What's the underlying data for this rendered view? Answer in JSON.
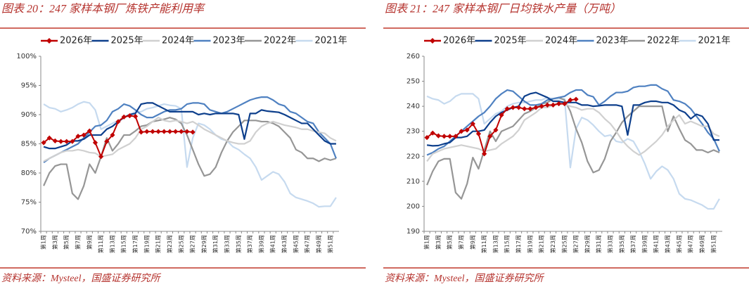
{
  "chart_data": [
    {
      "type": "line",
      "title": "图表 20：247 家样本钢厂炼铁产能利用率",
      "source": "资料来源：Mysteel，国盛证券研究所",
      "categories": [
        "第1周",
        null,
        "第3周",
        null,
        "第5周",
        null,
        "第7周",
        null,
        "第9周",
        null,
        "第11周",
        null,
        "第13周",
        null,
        "第15周",
        null,
        "第17周",
        null,
        "第19周",
        null,
        "第21周",
        null,
        "第23周",
        null,
        "第25周",
        null,
        "第27周",
        null,
        "第29周",
        null,
        "第31周",
        null,
        "第33周",
        null,
        "第35周",
        null,
        "第37周",
        null,
        "第39周",
        null,
        "第41周",
        null,
        "第43周",
        null,
        "第45周",
        null,
        "第47周",
        null,
        "第49周",
        null,
        "第51周",
        null
      ],
      "ylim": [
        70,
        100
      ],
      "yticks": [
        {
          "value": 70,
          "label": "70%"
        },
        {
          "value": 75,
          "label": "75%"
        },
        {
          "value": 80,
          "label": "80%"
        },
        {
          "value": 85,
          "label": "85%"
        },
        {
          "value": 90,
          "label": "90%"
        },
        {
          "value": 95,
          "label": "95%"
        },
        {
          "value": 100,
          "label": "100%"
        }
      ],
      "series": [
        {
          "name": "2026年",
          "color": "#c00000",
          "marker": "diamond",
          "values": [
            85.2,
            86,
            85.5,
            85.4,
            85.4,
            85.4,
            86.3,
            86.5,
            87.2,
            85.2,
            82.8,
            85.4,
            86.5,
            88.8,
            89.6,
            89.8,
            89.7,
            87,
            87.1,
            87.1,
            87.1,
            87.1,
            87.1,
            87.1,
            87.1,
            87.1,
            87,
            null,
            null,
            null,
            null,
            null,
            null,
            null,
            null,
            null,
            null,
            null,
            null,
            null,
            null,
            null,
            null,
            null,
            null,
            null,
            null,
            null,
            null,
            null,
            null,
            null
          ]
        },
        {
          "name": "2025年",
          "color": "#0d3f8c",
          "values": [
            84.5,
            84.2,
            84.2,
            84.5,
            84.8,
            85.5,
            85.5,
            85.8,
            86.5,
            86.5,
            86.5,
            87.5,
            88,
            88.8,
            89.5,
            90,
            90.2,
            91.8,
            92,
            92,
            91.5,
            91,
            90.5,
            90.5,
            90.5,
            90.5,
            90.5,
            90,
            90.2,
            90,
            90.2,
            90.2,
            90.2,
            90.2,
            90,
            85.8,
            90.2,
            90.2,
            90.8,
            90.6,
            90.5,
            90.4,
            90,
            89.5,
            89,
            88.5,
            88.5,
            87.5,
            86.5,
            85.5,
            85,
            85
          ]
        },
        {
          "name": "2024年",
          "color": "#d0d0d0",
          "values": [
            82,
            82.5,
            83,
            83.5,
            83.8,
            83.8,
            84,
            83.8,
            83.5,
            83.4,
            82.8,
            83,
            83.2,
            84,
            84.5,
            85,
            86,
            87.5,
            88,
            88.8,
            89.5,
            89,
            88.8,
            89,
            88.8,
            88.5,
            88.8,
            88.2,
            87.5,
            87,
            86.5,
            86,
            85.5,
            85.2,
            85,
            85,
            85.5,
            87,
            88,
            88.5,
            88.8,
            88.5,
            88.2,
            88,
            87.8,
            87.5,
            87.5,
            87.2,
            87,
            86.8,
            86,
            85.5
          ]
        },
        {
          "name": "2023年",
          "color": "#4f81c1",
          "values": [
            81.8,
            82.5,
            83,
            83.5,
            84,
            84.5,
            85,
            86,
            87,
            88,
            88.2,
            89,
            90.5,
            91,
            91.8,
            91.5,
            90.8,
            90,
            89.5,
            89.5,
            90,
            90.5,
            90.8,
            90.8,
            91,
            91.8,
            92,
            92,
            91.8,
            90.8,
            90.5,
            90.2,
            90.5,
            91,
            91.5,
            92,
            92.5,
            92.8,
            93,
            93,
            92.5,
            91.8,
            91.5,
            90.5,
            90.2,
            89.5,
            88.8,
            88.5,
            87,
            86,
            85,
            82.5
          ]
        },
        {
          "name": "2022年",
          "color": "#969696",
          "values": [
            77.8,
            80,
            81.2,
            81.5,
            81.5,
            76.5,
            75.5,
            77.8,
            81.5,
            80,
            82.8,
            86,
            83.8,
            85,
            86.5,
            86.5,
            87.2,
            88,
            88.2,
            88.8,
            89,
            89.2,
            89.5,
            89.2,
            88.5,
            86.5,
            84,
            81.5,
            79.5,
            79.8,
            81,
            83.5,
            85.5,
            87,
            88,
            89,
            89,
            89,
            88.8,
            88.8,
            88.5,
            88,
            87,
            86,
            84,
            83.5,
            82.5,
            82.5,
            82,
            82.5,
            82.2,
            82.5
          ]
        },
        {
          "name": "2021年",
          "color": "#c6daef",
          "values": [
            91.8,
            91.2,
            91,
            90.5,
            90.8,
            91.2,
            91.8,
            92.2,
            92,
            90.8,
            87.5,
            88,
            88.5,
            89,
            89.5,
            90,
            90.5,
            90.5,
            91,
            91.2,
            91.5,
            91.8,
            91.6,
            91.5,
            91,
            81,
            86,
            88.5,
            88.2,
            87.5,
            86.5,
            85.8,
            85.5,
            84.5,
            84,
            83.2,
            82.5,
            81,
            78.8,
            79.5,
            80.2,
            79.8,
            78.5,
            76.5,
            75.8,
            75.5,
            75.2,
            74.8,
            74.2,
            74.3,
            74.3,
            75.8
          ]
        }
      ]
    },
    {
      "type": "line",
      "title": "图表 21：247 家样本钢厂日均铁水产量（万吨）",
      "source": "资料来源：Mysteel，国盛证券研究所",
      "categories": [
        "第1周",
        null,
        "第3周",
        null,
        "第5周",
        null,
        "第7周",
        null,
        "第9周",
        null,
        "第11周",
        null,
        "第13周",
        null,
        "第15周",
        null,
        "第17周",
        null,
        "第19周",
        null,
        "第21周",
        null,
        "第23周",
        null,
        "第25周",
        null,
        "第27周",
        null,
        "第29周",
        null,
        "第31周",
        null,
        "第33周",
        null,
        "第35周",
        null,
        "第37周",
        null,
        "第39周",
        null,
        "第41周",
        null,
        "第43周",
        null,
        "第45周",
        null,
        "第47周",
        null,
        "第49周",
        null,
        "第51周",
        null
      ],
      "ylim": [
        190,
        260
      ],
      "yticks": [
        190,
        200,
        210,
        220,
        230,
        240,
        250,
        260
      ],
      "series": [
        {
          "name": "2026年",
          "color": "#c00000",
          "marker": "diamond",
          "values": [
            227.5,
            229.3,
            228.2,
            228,
            228,
            228,
            230,
            230.5,
            233,
            229,
            221,
            228,
            230.5,
            236.5,
            239,
            239.5,
            239.5,
            239,
            239,
            239.5,
            240,
            240.5,
            240.5,
            241,
            241,
            242.5,
            242.8,
            null,
            null,
            null,
            null,
            null,
            null,
            null,
            null,
            null,
            null,
            null,
            null,
            null,
            null,
            null,
            null,
            null,
            null,
            null,
            null,
            null,
            null,
            null,
            null,
            null
          ]
        },
        {
          "name": "2025年",
          "color": "#0d3f8c",
          "values": [
            224.5,
            224.2,
            224.3,
            225,
            225.5,
            227.5,
            227.5,
            228,
            230,
            230,
            230.5,
            233.5,
            236,
            237.5,
            238.5,
            239.5,
            240,
            244,
            245,
            245.5,
            244.5,
            243.5,
            242,
            242,
            241.5,
            241.5,
            241.5,
            240.5,
            240.5,
            240,
            240.2,
            240.5,
            240.5,
            240.5,
            240,
            228.5,
            240.5,
            240.5,
            241.5,
            242,
            242,
            241.5,
            241.5,
            240.5,
            238.5,
            237.5,
            235,
            236.8,
            236,
            233,
            226.5,
            226.5
          ]
        },
        {
          "name": "2024年",
          "color": "#d0d0d0",
          "values": [
            218,
            221,
            222,
            223,
            223.5,
            224,
            224.5,
            224,
            223.5,
            223,
            222,
            222.5,
            223,
            225,
            226.5,
            228,
            230.5,
            234.5,
            236,
            237.5,
            239.5,
            239.5,
            240.5,
            241.5,
            241,
            240,
            239.5,
            238.5,
            239,
            239,
            237.5,
            235,
            233,
            230,
            226.5,
            224,
            222,
            220.5,
            222,
            224,
            226,
            228.5,
            232,
            234.5,
            236.5,
            233,
            234,
            233,
            232,
            232,
            229,
            228
          ]
        },
        {
          "name": "2023年",
          "color": "#4f81c1",
          "values": [
            220.5,
            221.5,
            223,
            224,
            226,
            228,
            230,
            232,
            234,
            236,
            237.5,
            240,
            243,
            245,
            246.5,
            246,
            244,
            242,
            240.5,
            240.5,
            241,
            242.5,
            243,
            243.5,
            244,
            245.5,
            246.5,
            246.5,
            244.5,
            243.8,
            240.5,
            242,
            244,
            245.5,
            245.5,
            246,
            247.5,
            248,
            248,
            248.5,
            248.5,
            247,
            246,
            242.5,
            242,
            241,
            239,
            236,
            233,
            229.5,
            227,
            222
          ]
        },
        {
          "name": "2022年",
          "color": "#969696",
          "values": [
            208.5,
            214,
            218,
            219,
            219,
            205.5,
            203,
            209,
            219.5,
            215,
            222.5,
            230,
            226,
            230,
            231,
            232,
            234.5,
            237,
            238,
            239.5,
            241,
            241.5,
            243,
            243.5,
            242.5,
            238,
            231,
            225.5,
            218,
            213.5,
            214.5,
            219,
            226,
            229.5,
            233.5,
            236,
            238,
            240,
            240,
            240,
            240,
            240,
            230,
            236,
            231,
            226.5,
            225,
            222.5,
            222.5,
            221.5,
            222.5,
            221.5
          ]
        },
        {
          "name": "2021年",
          "color": "#c6daef",
          "values": [
            244,
            243,
            242.5,
            241,
            242,
            244,
            245,
            245,
            245,
            243,
            233,
            235,
            237,
            238,
            240,
            241,
            241.5,
            241.5,
            242,
            242.5,
            242.5,
            243.5,
            243,
            243,
            243,
            215.5,
            231,
            235.5,
            234.5,
            232.5,
            230,
            228,
            228.5,
            226,
            225.5,
            227,
            226,
            222,
            217,
            211,
            214,
            216,
            214.5,
            211,
            205,
            203,
            202.5,
            201.5,
            200.5,
            199,
            199,
            203
          ]
        }
      ]
    }
  ]
}
